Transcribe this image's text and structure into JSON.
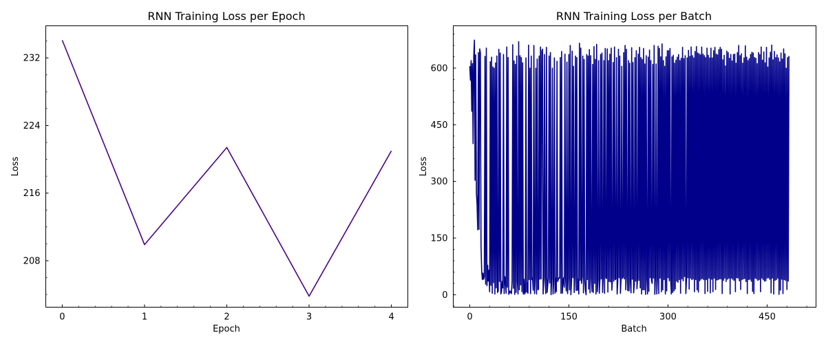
{
  "chart_data": [
    {
      "type": "line",
      "title": "RNN Training Loss per Epoch",
      "xlabel": "Epoch",
      "ylabel": "Loss",
      "xlim": [
        -0.2,
        4.2
      ],
      "ylim": [
        202.5,
        235.8
      ],
      "xticks": [
        0,
        1,
        2,
        3,
        4
      ],
      "yticks": [
        208,
        216,
        224,
        232
      ],
      "grid": false,
      "color": "#4b0082",
      "series": [
        {
          "x": [
            0,
            1,
            2,
            3,
            4
          ],
          "values": [
            234.1,
            209.9,
            221.4,
            203.8,
            221.0
          ]
        }
      ]
    },
    {
      "type": "line",
      "title": "RNN Training Loss per Batch",
      "xlabel": "Batch",
      "ylabel": "Loss",
      "xlim": [
        -25,
        524
      ],
      "ylim": [
        -33,
        712
      ],
      "xticks": [
        0,
        150,
        300,
        450
      ],
      "yticks": [
        0,
        150,
        300,
        450,
        600
      ],
      "grid": false,
      "color": "#00008b",
      "series": [
        {
          "values": [
            605,
            568,
            620,
            486,
            612,
            400,
            630,
            674,
            303,
            635,
            270,
            240,
            172,
            641,
            173,
            651,
            640,
            130,
            63,
            40,
            57,
            41,
            48,
            631,
            28,
            653,
            24,
            78,
            36,
            65,
            8,
            617,
            25,
            629,
            4,
            603,
            32,
            600,
            2,
            614,
            18,
            632,
            6,
            10,
            650,
            35,
            640,
            2,
            8,
            36,
            18,
            636,
            3,
            48,
            38,
            4,
            656,
            20,
            628,
            1,
            5,
            10,
            6,
            3,
            35,
            662,
            17,
            619,
            1,
            610,
            6,
            632,
            36,
            2,
            670,
            13,
            633,
            26,
            628,
            8,
            614,
            2,
            41,
            2,
            6,
            627,
            7,
            32,
            4,
            661,
            40,
            600,
            3,
            632,
            40,
            44,
            12,
            660,
            3,
            44,
            600,
            2,
            624,
            13,
            15,
            632,
            41,
            656,
            42,
            645,
            650,
            2,
            40,
            636,
            46,
            3,
            655,
            6,
            26,
            44,
            632,
            31,
            641,
            0,
            42,
            600,
            2,
            36,
            627,
            4,
            44,
            8,
            618,
            35,
            40,
            45,
            44,
            628,
            4,
            644,
            4,
            33,
            45,
            20,
            637,
            43,
            10,
            616,
            3,
            44,
            636,
            13,
            660,
            0,
            37,
            645,
            45,
            605,
            6,
            48,
            632,
            11,
            628,
            12,
            41,
            2,
            666,
            38,
            653,
            30,
            48,
            632,
            5,
            623,
            39,
            12,
            0,
            636,
            40,
            632,
            15,
            649,
            5,
            633,
            44,
            8,
            610,
            6,
            657,
            30,
            623,
            2,
            663,
            8,
            40,
            620,
            4,
            40,
            636,
            42,
            640,
            6,
            47,
            620,
            4,
            652,
            44,
            43,
            651,
            7,
            620,
            35,
            637,
            34,
            653,
            12,
            44,
            615,
            36,
            656,
            40,
            42,
            628,
            2,
            35,
            650,
            45,
            632,
            4,
            44,
            605,
            43,
            47,
            641,
            42,
            660,
            13,
            650,
            48,
            11,
            620,
            10,
            613,
            35,
            5,
            654,
            41,
            615,
            5,
            28,
            628,
            36,
            646,
            16,
            45,
            637,
            38,
            655,
            18,
            628,
            2,
            623,
            13,
            652,
            13,
            611,
            1,
            633,
            40,
            2,
            629,
            9,
            648,
            45,
            620,
            38,
            30,
            610,
            44,
            660,
            1,
            46,
            611,
            2,
            42,
            658,
            3,
            652,
            44,
            630,
            8,
            664,
            13,
            620,
            40,
            605,
            2,
            630,
            10,
            646,
            45,
            646,
            37,
            652,
            44,
            2,
            630,
            6,
            634,
            10,
            613,
            15,
            621,
            36,
            629,
            33,
            636,
            40,
            620,
            4,
            626,
            42,
            655,
            37,
            625,
            48,
            633,
            3,
            40,
            627,
            45,
            647,
            15,
            631,
            44,
            656,
            40,
            633,
            42,
            627,
            8,
            644,
            40,
            657,
            13,
            640,
            7,
            638,
            37,
            635,
            41,
            656,
            43,
            637,
            40,
            633,
            3,
            628,
            40,
            653,
            9,
            634,
            44,
            627,
            5,
            653,
            41,
            627,
            8,
            646,
            44,
            655,
            14,
            637,
            39,
            635,
            40,
            649,
            42,
            655,
            42,
            650,
            3,
            622,
            38,
            634,
            44,
            606,
            35,
            645,
            41,
            641,
            44,
            626,
            2,
            636,
            44,
            619,
            41,
            636,
            38,
            637,
            8,
            613,
            45,
            641,
            44,
            660,
            37,
            633,
            14,
            638,
            40,
            613,
            42,
            627,
            43,
            659,
            35,
            629,
            3,
            620,
            40,
            625,
            41,
            636,
            36,
            642,
            9,
            640,
            3,
            628,
            44,
            626,
            42,
            612,
            38,
            641,
            40,
            636,
            8,
            656,
            44,
            621,
            40,
            643,
            36,
            614,
            37,
            655,
            44,
            603,
            45,
            627,
            41,
            642,
            5,
            661,
            44,
            622,
            2,
            644,
            38,
            628,
            40,
            635,
            44,
            627,
            1,
            617,
            12,
            640,
            41,
            624,
            3,
            651,
            40,
            638,
            38,
            600,
            14,
            628,
            36,
            632
          ]
        }
      ]
    }
  ]
}
